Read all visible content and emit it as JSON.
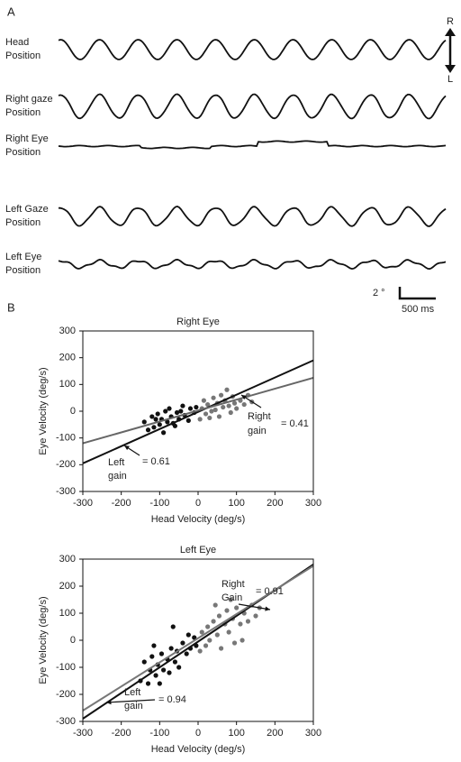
{
  "panel_a": {
    "label": "A",
    "traces": [
      [
        "Head",
        "Position"
      ],
      [
        "Right gaze",
        "Position"
      ],
      [
        "Right Eye",
        "Position"
      ],
      [
        "Left Gaze",
        "Position"
      ],
      [
        "Left Eye",
        "Position"
      ]
    ],
    "direction": [
      "R",
      "L"
    ],
    "scale_y": "2 °",
    "scale_x": "500 ms"
  },
  "panel_b": {
    "label": "B"
  },
  "chart_data": [
    {
      "type": "scatter",
      "title": "Right Eye",
      "xlabel": "Head Velocity (deg/s)",
      "ylabel": "Eye Velocity (deg/s)",
      "xlim": [
        -300,
        300
      ],
      "ylim": [
        -300,
        300
      ],
      "xticks": [
        -300,
        -200,
        -100,
        0,
        100,
        200,
        300
      ],
      "yticks": [
        -300,
        -200,
        -100,
        0,
        100,
        200,
        300
      ],
      "series": [
        {
          "color": "#111111",
          "x": [
            -140,
            -130,
            -120,
            -115,
            -105,
            -100,
            -95,
            -90,
            -85,
            -80,
            -75,
            -70,
            -60,
            -55,
            -50,
            -40,
            -35,
            -25,
            -20,
            -10,
            -5,
            -110,
            -65,
            -45
          ],
          "values": [
            -40,
            -70,
            -20,
            -60,
            -10,
            -50,
            -30,
            -80,
            0,
            -40,
            10,
            -20,
            -55,
            -5,
            -30,
            20,
            -15,
            -35,
            10,
            -5,
            15,
            -30,
            -45,
            0
          ]
        },
        {
          "color": "#777777",
          "x": [
            5,
            10,
            15,
            20,
            25,
            30,
            40,
            45,
            50,
            55,
            60,
            65,
            70,
            80,
            85,
            90,
            95,
            100,
            110,
            120,
            130,
            140,
            35,
            75
          ],
          "values": [
            -30,
            10,
            40,
            -10,
            25,
            -25,
            50,
            5,
            30,
            -20,
            60,
            15,
            40,
            20,
            -5,
            55,
            30,
            10,
            40,
            25,
            60,
            35,
            0,
            80
          ]
        }
      ],
      "fit_lines": [
        {
          "color": "#111111",
          "x": [
            -300,
            300
          ],
          "values": [
            -195,
            190
          ]
        },
        {
          "color": "#666666",
          "x": [
            -300,
            300
          ],
          "values": [
            -120,
            125
          ]
        }
      ],
      "annotations": [
        "Right",
        "gain",
        "= 0.41",
        "Left",
        "gain",
        "= 0.61"
      ]
    },
    {
      "type": "scatter",
      "title": "Left Eye",
      "xlabel": "Head Velocity (deg/s)",
      "ylabel": "Eye Velocity (deg/s)",
      "xlim": [
        -300,
        300
      ],
      "ylim": [
        -300,
        300
      ],
      "xticks": [
        -300,
        -200,
        -100,
        0,
        100,
        200,
        300
      ],
      "yticks": [
        -300,
        -200,
        -100,
        0,
        100,
        200,
        300
      ],
      "series": [
        {
          "color": "#111111",
          "x": [
            -150,
            -140,
            -130,
            -125,
            -120,
            -110,
            -105,
            -100,
            -95,
            -90,
            -80,
            -75,
            -70,
            -60,
            -55,
            -50,
            -40,
            -30,
            -25,
            -20,
            -10,
            -5,
            -115,
            -65
          ],
          "values": [
            -150,
            -80,
            -160,
            -110,
            -60,
            -130,
            -90,
            -160,
            -50,
            -110,
            -70,
            -120,
            -30,
            -80,
            -40,
            -100,
            -10,
            -50,
            20,
            -30,
            10,
            -20,
            -20,
            50
          ]
        },
        {
          "color": "#777777",
          "x": [
            5,
            10,
            20,
            25,
            30,
            40,
            50,
            55,
            60,
            70,
            75,
            80,
            90,
            95,
            100,
            110,
            120,
            130,
            140,
            150,
            160,
            45,
            85,
            115
          ],
          "values": [
            -40,
            30,
            -20,
            50,
            0,
            70,
            20,
            90,
            -30,
            60,
            110,
            30,
            80,
            -10,
            120,
            60,
            100,
            70,
            130,
            90,
            120,
            130,
            150,
            0
          ]
        }
      ],
      "fit_lines": [
        {
          "color": "#111111",
          "x": [
            -300,
            300
          ],
          "values": [
            -290,
            280
          ]
        },
        {
          "color": "#777777",
          "x": [
            -300,
            300
          ],
          "values": [
            -260,
            275
          ]
        }
      ],
      "annotations": [
        "Right",
        "Gain",
        "= 0.91",
        "Left",
        "gain",
        "= 0.94"
      ]
    }
  ]
}
